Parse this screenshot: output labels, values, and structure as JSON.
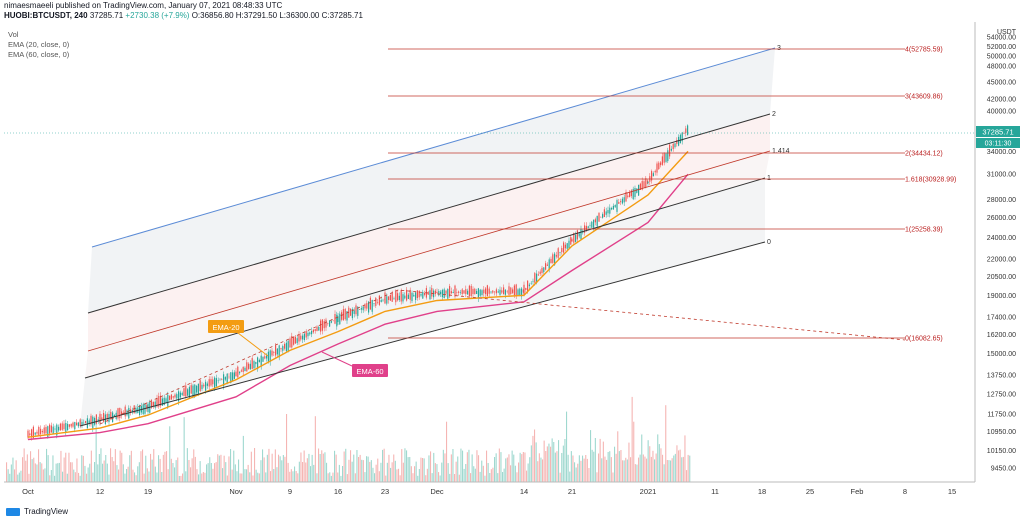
{
  "header": {
    "line1": "nimaesmaeeli published on TradingView.com, January 07, 2021 08:48:33 UTC",
    "symbol": "HUOBI:BTCUSDT, 240",
    "price": "37285.71",
    "change": "+2730.38 (+7.9%)",
    "ohlc": "O:36856.80 H:37291.50 L:36300.00 C:37285.71"
  },
  "indicators": [
    "Vol",
    "EMA (20, close, 0)",
    "EMA (60, close, 0)"
  ],
  "currency": "USDT",
  "colors": {
    "ema20": "#f39c12",
    "ema60": "#e0408a",
    "channel_top": "#5b8bd6",
    "fib": "#c0392b",
    "up": "#26a69a",
    "down": "#ef5350",
    "price_label": "#26a69a"
  },
  "footer": {
    "brand": "TradingView"
  },
  "chart_data": {
    "type": "line",
    "title": "",
    "price_axis": [
      "54000.00",
      "52000.00",
      "50000.00",
      "48000.00",
      "45000.00",
      "42000.00",
      "40000.00",
      "37285.71",
      "34000.00",
      "31000.00",
      "28000.00",
      "26000.00",
      "24000.00",
      "22000.00",
      "20500.00",
      "19000.00",
      "17400.00",
      "16200.00",
      "15000.00",
      "13750.00",
      "12750.00",
      "11750.00",
      "10950.00",
      "10150.00",
      "9450.00"
    ],
    "time_axis": [
      "Oct",
      "12",
      "19",
      "Nov",
      "9",
      "16",
      "23",
      "Dec",
      "14",
      "21",
      "2021",
      "11",
      "18",
      "25",
      "Feb",
      "8",
      "15"
    ],
    "last_price": "37285.71",
    "countdown": "03:11:30",
    "fib_levels": [
      {
        "label": "4(52785.59)",
        "value": 52785.59
      },
      {
        "label": "3(43609.86)",
        "value": 43609.86
      },
      {
        "label": "2(34434.12)",
        "value": 34434.12
      },
      {
        "label": "1.618(30928.99)",
        "value": 30928.99
      },
      {
        "label": "1(25258.39)",
        "value": 25258.39
      },
      {
        "label": "0(16082.65)",
        "value": 16082.65
      }
    ],
    "channel_labels": [
      "3",
      "2",
      "1.414",
      "1",
      "0"
    ],
    "annotations": [
      "EMA-20",
      "EMA-60"
    ],
    "series": [
      {
        "name": "EMA-20",
        "points": [
          [
            "Oct",
            10700
          ],
          [
            "12",
            11100
          ],
          [
            "19",
            11700
          ],
          [
            "Nov",
            13500
          ],
          [
            "9",
            15200
          ],
          [
            "16",
            16400
          ],
          [
            "23",
            17800
          ],
          [
            "Dec",
            18600
          ],
          [
            "14",
            19000
          ],
          [
            "21",
            23200
          ],
          [
            "2021",
            28500
          ],
          [
            "6 Jan",
            34000
          ]
        ]
      },
      {
        "name": "EMA-60",
        "points": [
          [
            "Oct",
            10600
          ],
          [
            "12",
            10900
          ],
          [
            "19",
            11300
          ],
          [
            "Nov",
            12600
          ],
          [
            "9",
            14300
          ],
          [
            "16",
            15600
          ],
          [
            "23",
            16900
          ],
          [
            "Dec",
            17800
          ],
          [
            "14",
            18500
          ],
          [
            "21",
            21000
          ],
          [
            "2021",
            25500
          ],
          [
            "6 Jan",
            31000
          ]
        ]
      }
    ]
  }
}
